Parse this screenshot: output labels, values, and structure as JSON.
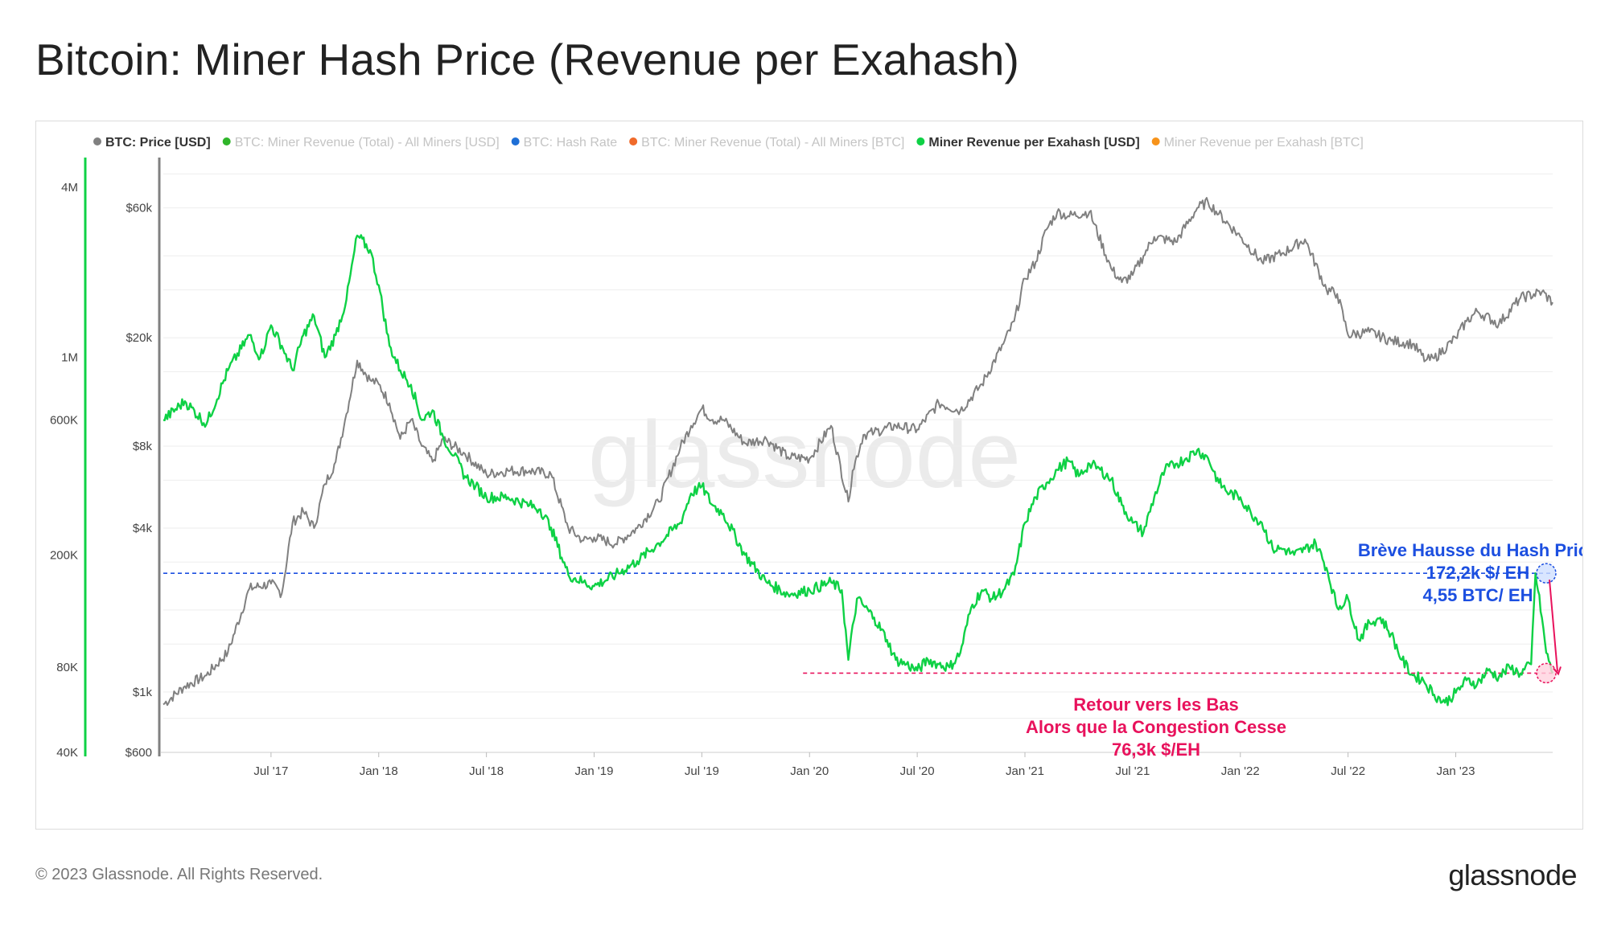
{
  "header": {
    "title": "Bitcoin: Miner Hash Price (Revenue per Exahash)"
  },
  "footer": {
    "copyright": "© 2023 Glassnode. All Rights Reserved.",
    "logo": "glassnode"
  },
  "watermark": "glassnode",
  "colors": {
    "price": "#808080",
    "revenue_per_eh": "#0ed145",
    "blue_annotation": "#1c4fe0",
    "pink_annotation": "#e8125c",
    "grid": "#eeeeee",
    "left_axis_bar": "#0ed145"
  },
  "legend": [
    {
      "label": "BTC: Price [USD]",
      "color": "#808080",
      "active": true
    },
    {
      "label": "BTC: Miner Revenue (Total) - All Miners [USD]",
      "color": "#2fb52a",
      "active": false
    },
    {
      "label": "BTC: Hash Rate",
      "color": "#1e6fd6",
      "active": false
    },
    {
      "label": "BTC: Miner Revenue (Total) - All Miners [BTC]",
      "color": "#f06a2a",
      "active": false
    },
    {
      "label": "Miner Revenue per Exahash [USD]",
      "color": "#0ed145",
      "active": true
    },
    {
      "label": "Miner Revenue per Exahash [BTC]",
      "color": "#f7931a",
      "active": false
    }
  ],
  "annotations": {
    "spike": [
      "Brève Hausse du Hash Price",
      "172,2k $/ EH",
      "4,55 BTC/ EH"
    ],
    "return": [
      "Retour vers les Bas",
      "Alors que la Congestion Cesse",
      "76,3k $/EH"
    ]
  },
  "chart_data": {
    "type": "line",
    "title": "Bitcoin: Miner Hash Price (Revenue per Exahash)",
    "x_range": [
      2017.0,
      2023.45
    ],
    "x_ticks": [
      {
        "label": "Jul '17",
        "x": 2017.5
      },
      {
        "label": "Jan '18",
        "x": 2018.0
      },
      {
        "label": "Jul '18",
        "x": 2018.5
      },
      {
        "label": "Jan '19",
        "x": 2019.0
      },
      {
        "label": "Jul '19",
        "x": 2019.5
      },
      {
        "label": "Jan '20",
        "x": 2020.0
      },
      {
        "label": "Jul '20",
        "x": 2020.5
      },
      {
        "label": "Jan '21",
        "x": 2021.0
      },
      {
        "label": "Jul '21",
        "x": 2021.5
      },
      {
        "label": "Jan '22",
        "x": 2022.0
      },
      {
        "label": "Jul '22",
        "x": 2022.5
      },
      {
        "label": "Jan '23",
        "x": 2023.0
      }
    ],
    "y_price": {
      "label": "BTC: Price [USD]",
      "scale": "log",
      "range": [
        600,
        90000
      ],
      "ticks": [
        {
          "label": "$600",
          "value": 600
        },
        {
          "label": "$1k",
          "value": 1000
        },
        {
          "label": "$4k",
          "value": 4000
        },
        {
          "label": "$8k",
          "value": 8000
        },
        {
          "label": "$20k",
          "value": 20000
        },
        {
          "label": "$60k",
          "value": 60000
        }
      ]
    },
    "y_revenue": {
      "label": "Miner Revenue per Exahash [USD]",
      "scale": "log",
      "range": [
        40000,
        5000000
      ],
      "ticks": [
        {
          "label": "40K",
          "value": 40000
        },
        {
          "label": "80K",
          "value": 80000
        },
        {
          "label": "200K",
          "value": 200000
        },
        {
          "label": "600K",
          "value": 600000
        },
        {
          "label": "1M",
          "value": 1000000
        },
        {
          "label": "4M",
          "value": 4000000
        }
      ]
    },
    "series": [
      {
        "name": "BTC: Price [USD]",
        "axis": "price",
        "x": [
          2017.0,
          2017.1,
          2017.2,
          2017.3,
          2017.4,
          2017.5,
          2017.55,
          2017.6,
          2017.65,
          2017.7,
          2017.75,
          2017.8,
          2017.85,
          2017.9,
          2017.96,
          2018.0,
          2018.05,
          2018.1,
          2018.15,
          2018.2,
          2018.25,
          2018.3,
          2018.4,
          2018.5,
          2018.6,
          2018.7,
          2018.8,
          2018.88,
          2018.95,
          2019.0,
          2019.1,
          2019.2,
          2019.3,
          2019.4,
          2019.45,
          2019.5,
          2019.55,
          2019.6,
          2019.7,
          2019.8,
          2019.9,
          2020.0,
          2020.1,
          2020.18,
          2020.2,
          2020.25,
          2020.3,
          2020.4,
          2020.5,
          2020.6,
          2020.7,
          2020.8,
          2020.9,
          2020.95,
          2021.0,
          2021.05,
          2021.1,
          2021.15,
          2021.2,
          2021.3,
          2021.4,
          2021.45,
          2021.5,
          2021.55,
          2021.6,
          2021.7,
          2021.8,
          2021.85,
          2021.9,
          2022.0,
          2022.1,
          2022.2,
          2022.3,
          2022.4,
          2022.45,
          2022.5,
          2022.6,
          2022.7,
          2022.8,
          2022.86,
          2022.9,
          2023.0,
          2023.05,
          2023.1,
          2023.2,
          2023.3,
          2023.4,
          2023.45
        ],
        "values": [
          900,
          1050,
          1150,
          1400,
          2400,
          2500,
          2300,
          4200,
          4600,
          4000,
          5800,
          7000,
          10500,
          16500,
          14000,
          13500,
          11500,
          8500,
          10000,
          8000,
          7000,
          8500,
          7500,
          6300,
          6500,
          6500,
          6300,
          4000,
          3600,
          3700,
          3500,
          4000,
          5000,
          7900,
          9500,
          11000,
          10000,
          10000,
          8200,
          8500,
          7300,
          7200,
          9500,
          5000,
          6500,
          8800,
          9000,
          9500,
          9200,
          11500,
          10800,
          13500,
          19000,
          23000,
          33000,
          38000,
          50000,
          58000,
          56000,
          58000,
          36000,
          32000,
          34000,
          40000,
          47000,
          45000,
          60000,
          63000,
          57000,
          47000,
          38000,
          41000,
          46000,
          30000,
          29000,
          20500,
          21000,
          19500,
          19000,
          16500,
          16800,
          20000,
          23000,
          25000,
          22500,
          28000,
          29500,
          27000
        ]
      },
      {
        "name": "Miner Revenue per Exahash [USD]",
        "axis": "revenue",
        "x": [
          2017.0,
          2017.1,
          2017.2,
          2017.3,
          2017.4,
          2017.45,
          2017.5,
          2017.55,
          2017.6,
          2017.65,
          2017.7,
          2017.75,
          2017.8,
          2017.85,
          2017.9,
          2017.96,
          2018.0,
          2018.05,
          2018.1,
          2018.15,
          2018.2,
          2018.25,
          2018.3,
          2018.35,
          2018.4,
          2018.45,
          2018.5,
          2018.6,
          2018.7,
          2018.75,
          2018.8,
          2018.88,
          2018.95,
          2019.0,
          2019.1,
          2019.2,
          2019.3,
          2019.4,
          2019.45,
          2019.5,
          2019.55,
          2019.6,
          2019.7,
          2019.8,
          2019.9,
          2020.0,
          2020.1,
          2020.15,
          2020.18,
          2020.22,
          2020.3,
          2020.36,
          2020.4,
          2020.45,
          2020.5,
          2020.55,
          2020.6,
          2020.65,
          2020.7,
          2020.75,
          2020.8,
          2020.85,
          2020.9,
          2020.95,
          2021.0,
          2021.05,
          2021.1,
          2021.15,
          2021.2,
          2021.25,
          2021.3,
          2021.35,
          2021.4,
          2021.45,
          2021.5,
          2021.55,
          2021.6,
          2021.65,
          2021.7,
          2021.75,
          2021.8,
          2021.85,
          2021.9,
          2021.95,
          2022.0,
          2022.05,
          2022.1,
          2022.15,
          2022.2,
          2022.25,
          2022.3,
          2022.35,
          2022.4,
          2022.45,
          2022.5,
          2022.55,
          2022.6,
          2022.65,
          2022.7,
          2022.75,
          2022.8,
          2022.85,
          2022.9,
          2022.95,
          2023.0,
          2023.05,
          2023.1,
          2023.15,
          2023.2,
          2023.25,
          2023.3,
          2023.35,
          2023.37,
          2023.4,
          2023.42,
          2023.45
        ],
        "values": [
          600000,
          700000,
          580000,
          900000,
          1200000,
          1000000,
          1300000,
          1100000,
          900000,
          1200000,
          1400000,
          1000000,
          1200000,
          1600000,
          2700000,
          2400000,
          1800000,
          1100000,
          900000,
          800000,
          600000,
          650000,
          520000,
          450000,
          380000,
          350000,
          320000,
          320000,
          300000,
          290000,
          250000,
          170000,
          160000,
          155000,
          170000,
          190000,
          220000,
          260000,
          330000,
          350000,
          300000,
          280000,
          200000,
          160000,
          145000,
          150000,
          160000,
          150000,
          85000,
          140000,
          120000,
          100000,
          85000,
          82000,
          78000,
          85000,
          82000,
          80000,
          90000,
          130000,
          150000,
          140000,
          150000,
          170000,
          260000,
          320000,
          360000,
          400000,
          430000,
          380000,
          420000,
          400000,
          370000,
          300000,
          260000,
          240000,
          320000,
          400000,
          420000,
          440000,
          470000,
          440000,
          360000,
          330000,
          320000,
          280000,
          260000,
          210000,
          210000,
          200000,
          210000,
          220000,
          180000,
          130000,
          140000,
          100000,
          115000,
          120000,
          105000,
          85000,
          75000,
          72000,
          64000,
          60000,
          65000,
          72000,
          70000,
          78000,
          74000,
          80000,
          76000,
          82000,
          172200,
          120000,
          90000,
          76300
        ]
      }
    ],
    "reference_lines": [
      {
        "label": "172,2k $/ EH",
        "axis": "revenue",
        "value": 172200,
        "x_start": 2017.0,
        "color": "#1c4fe0"
      },
      {
        "label": "76,3k $/EH",
        "axis": "revenue",
        "value": 76300,
        "x_start": 2019.97,
        "color": "#e8125c"
      }
    ]
  }
}
